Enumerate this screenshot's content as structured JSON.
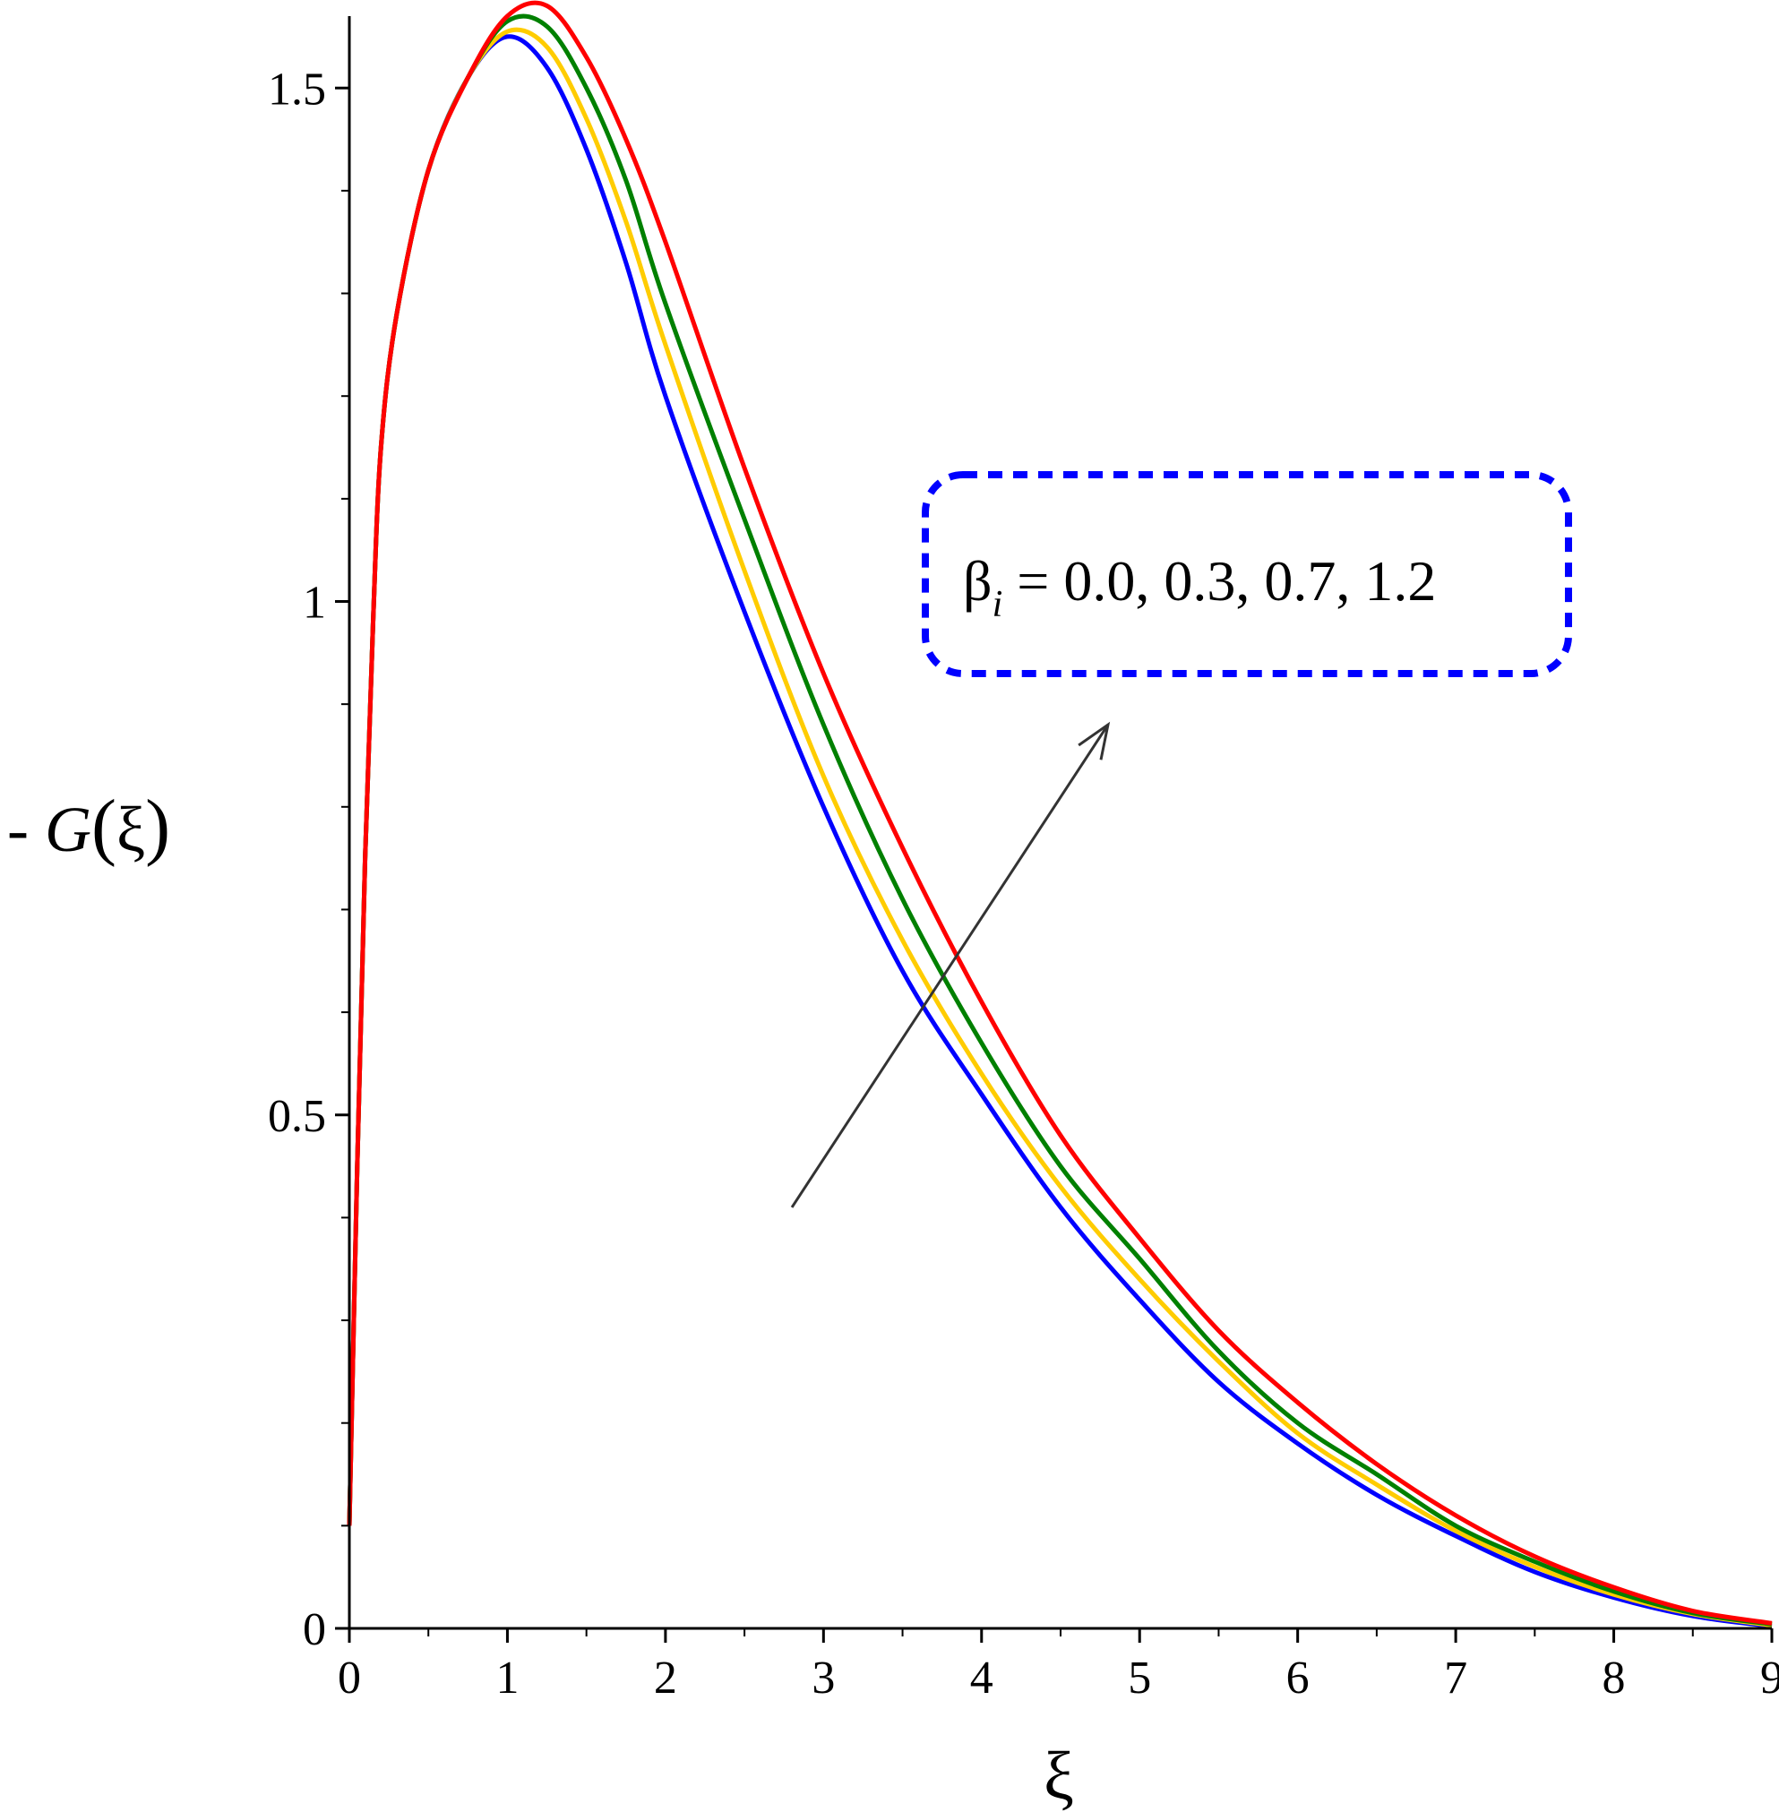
{
  "chart_data": {
    "type": "line",
    "title": "",
    "xlabel": "ξ",
    "ylabel": {
      "prefix": "- ",
      "func": "G",
      "open": "(",
      "var": "ξ",
      "close": ")"
    },
    "xlim": [
      0,
      9
    ],
    "ylim": [
      0,
      1.57
    ],
    "x_ticks": [
      0,
      1,
      2,
      3,
      4,
      5,
      6,
      7,
      8,
      9
    ],
    "x_tick_labels": [
      "0",
      "1",
      "2",
      "3",
      "4",
      "5",
      "6",
      "7",
      "8",
      "9"
    ],
    "y_ticks": [
      0,
      0.5,
      1,
      1.5
    ],
    "y_tick_labels": [
      "0",
      "0.5",
      "1",
      "1.5"
    ],
    "grid": false,
    "x": [
      0,
      0.05,
      0.1,
      0.15,
      0.2,
      0.3,
      0.5,
      0.75,
      1.0,
      1.25,
      1.5,
      1.75,
      2.0,
      2.5,
      3.0,
      3.5,
      4.0,
      4.5,
      5.0,
      5.5,
      6.0,
      6.5,
      7.0,
      7.5,
      8.0,
      8.5,
      9.0
    ],
    "series": [
      {
        "color": "#0000ff",
        "values": [
          0.1,
          0.45,
          0.75,
          0.98,
          1.15,
          1.28,
          1.42,
          1.51,
          1.55,
          1.52,
          1.44,
          1.33,
          1.2,
          0.99,
          0.8,
          0.64,
          0.52,
          0.41,
          0.32,
          0.24,
          0.18,
          0.13,
          0.09,
          0.055,
          0.03,
          0.012,
          0.002
        ]
      },
      {
        "color": "#ffcc00",
        "values": [
          0.1,
          0.45,
          0.75,
          0.98,
          1.15,
          1.28,
          1.42,
          1.51,
          1.555,
          1.54,
          1.47,
          1.37,
          1.25,
          1.03,
          0.83,
          0.67,
          0.54,
          0.43,
          0.34,
          0.26,
          0.19,
          0.14,
          0.095,
          0.06,
          0.033,
          0.014,
          0.003
        ]
      },
      {
        "color": "#008000",
        "values": [
          0.1,
          0.45,
          0.75,
          0.98,
          1.15,
          1.28,
          1.42,
          1.51,
          1.565,
          1.56,
          1.5,
          1.41,
          1.29,
          1.08,
          0.88,
          0.71,
          0.57,
          0.45,
          0.36,
          0.27,
          0.2,
          0.15,
          0.1,
          0.065,
          0.036,
          0.015,
          0.004
        ]
      },
      {
        "color": "#ff0000",
        "values": [
          0.1,
          0.45,
          0.75,
          0.98,
          1.15,
          1.28,
          1.42,
          1.51,
          1.57,
          1.58,
          1.53,
          1.45,
          1.35,
          1.13,
          0.93,
          0.76,
          0.61,
          0.48,
          0.38,
          0.29,
          0.22,
          0.16,
          0.11,
          0.07,
          0.04,
          0.017,
          0.005
        ]
      }
    ],
    "annotation": {
      "symbol": "β",
      "subscript": "i",
      "text": " = 0.0, 0.3, 0.7, 1.2",
      "box_style": "dashed",
      "box_color": "#0000ff",
      "arrow_color": "#333333",
      "arrow_from": [
        2.8,
        0.41
      ],
      "arrow_to": [
        4.8,
        0.88
      ]
    },
    "axis_color": "#000000"
  }
}
